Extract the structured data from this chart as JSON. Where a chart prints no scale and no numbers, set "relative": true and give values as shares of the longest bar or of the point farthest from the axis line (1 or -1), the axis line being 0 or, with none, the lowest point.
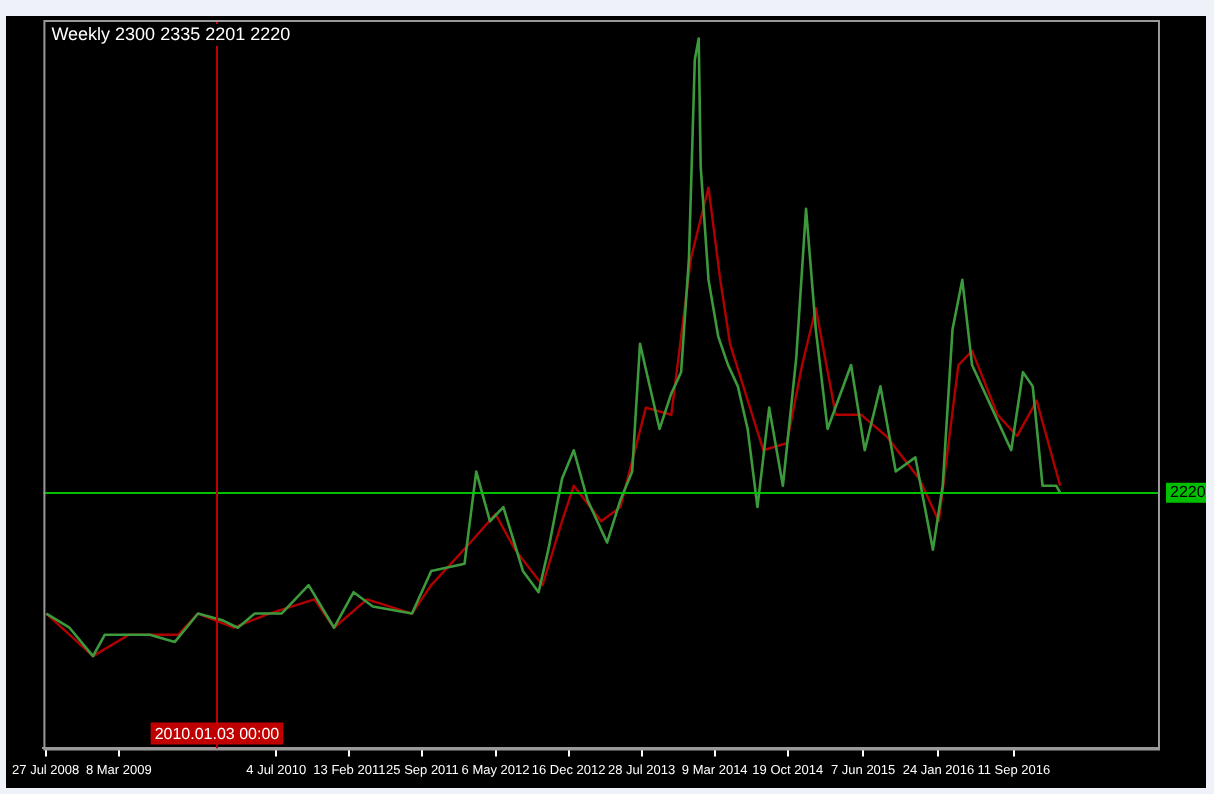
{
  "chart_data": {
    "type": "line",
    "title": "Weekly 2300 2335 2201 2220",
    "relative": true,
    "grid": false,
    "legend": false,
    "xlim": [
      "2008-07-20",
      "2017-11-27"
    ],
    "xticks": [
      {
        "value": "2008-07-27",
        "label": "27 Jul 2008"
      },
      {
        "value": "2009-03-08",
        "label": "8 Mar 2009"
      },
      {
        "value": "2010-07-04",
        "label": "4 Jul 2010"
      },
      {
        "value": "2011-02-13",
        "label": "13 Feb 2011"
      },
      {
        "value": "2011-09-25",
        "label": "25 Sep 2011"
      },
      {
        "value": "2012-05-06",
        "label": "6 May 2012"
      },
      {
        "value": "2012-12-16",
        "label": "16 Dec 2012"
      },
      {
        "value": "2013-07-28",
        "label": "28 Jul 2013"
      },
      {
        "value": "2014-03-09",
        "label": "9 Mar 2014"
      },
      {
        "value": "2014-10-19",
        "label": "19 Oct 2014"
      },
      {
        "value": "2015-06-07",
        "label": "7 Jun 2015"
      },
      {
        "value": "2016-01-24",
        "label": "24 Jan 2016"
      },
      {
        "value": "2016-09-11",
        "label": "11 Sep 2016"
      }
    ],
    "annotations": [
      "2220"
    ],
    "ref_lines": [
      {
        "axis": "y",
        "value": 0.36,
        "color": "#00c000"
      },
      {
        "axis": "x",
        "value": "2010-01-03",
        "label": "2010.01.03 00:00",
        "color": "#c00000"
      }
    ],
    "series": [
      {
        "color": "#3c9a3c",
        "x": [
          "2008-07-29",
          "2008-10-08",
          "2008-12-19",
          "2009-01-24",
          "2009-04-27",
          "2009-06-11",
          "2009-08-27",
          "2009-11-06",
          "2010-01-22",
          "2010-03-08",
          "2010-04-29",
          "2010-07-20",
          "2010-10-11",
          "2010-12-28",
          "2011-02-26",
          "2011-04-26",
          "2011-08-24",
          "2011-10-22",
          "2012-02-01",
          "2012-03-08",
          "2012-04-19",
          "2012-05-30",
          "2012-07-29",
          "2012-09-15",
          "2012-10-15",
          "2012-11-26",
          "2013-01-01",
          "2013-02-12",
          "2013-04-13",
          "2013-05-24",
          "2013-06-29",
          "2013-07-23",
          "2013-09-21",
          "2013-10-27",
          "2013-11-26",
          "2013-12-20",
          "2014-01-07",
          "2014-01-19",
          "2014-01-25",
          "2014-02-18",
          "2014-03-20",
          "2014-04-19",
          "2014-05-19",
          "2014-06-18",
          "2014-07-18",
          "2014-08-23",
          "2014-10-04",
          "2014-11-14",
          "2014-12-14",
          "2015-01-13",
          "2015-02-18",
          "2015-05-01",
          "2015-06-12",
          "2015-07-30",
          "2015-09-15",
          "2015-11-14",
          "2016-01-07",
          "2016-02-06",
          "2016-03-07",
          "2016-04-06",
          "2016-05-06",
          "2016-07-05",
          "2016-09-03",
          "2016-10-09",
          "2016-11-08",
          "2016-12-08",
          "2017-01-19",
          "2017-01-31"
        ],
        "values": [
          0.19,
          0.17,
          0.13,
          0.16,
          0.16,
          0.16,
          0.15,
          0.19,
          0.18,
          0.17,
          0.19,
          0.19,
          0.23,
          0.17,
          0.22,
          0.2,
          0.19,
          0.25,
          0.26,
          0.39,
          0.32,
          0.34,
          0.25,
          0.22,
          0.28,
          0.38,
          0.42,
          0.35,
          0.29,
          0.35,
          0.39,
          0.57,
          0.45,
          0.5,
          0.53,
          0.69,
          0.97,
          1.0,
          0.82,
          0.66,
          0.58,
          0.54,
          0.51,
          0.45,
          0.34,
          0.48,
          0.37,
          0.55,
          0.76,
          0.59,
          0.45,
          0.54,
          0.42,
          0.51,
          0.39,
          0.41,
          0.28,
          0.37,
          0.59,
          0.66,
          0.54,
          0.48,
          0.42,
          0.53,
          0.51,
          0.37,
          0.37,
          0.36
        ]
      },
      {
        "color": "#b00000",
        "x": [
          "2008-07-29",
          "2008-12-19",
          "2009-04-08",
          "2009-09-06",
          "2009-11-06",
          "2010-02-24",
          "2010-06-12",
          "2010-10-29",
          "2010-12-28",
          "2011-04-08",
          "2011-08-24",
          "2011-10-22",
          "2012-02-19",
          "2012-05-06",
          "2012-07-05",
          "2012-09-27",
          "2012-11-26",
          "2013-01-01",
          "2013-03-26",
          "2013-05-24",
          "2013-08-10",
          "2013-10-27",
          "2013-12-26",
          "2014-02-18",
          "2014-03-26",
          "2014-04-25",
          "2014-08-05",
          "2014-10-16",
          "2014-12-02",
          "2015-01-13",
          "2015-03-15",
          "2015-06-01",
          "2015-08-17",
          "2015-11-26",
          "2016-01-25",
          "2016-03-25",
          "2016-05-06",
          "2016-07-23",
          "2016-09-21",
          "2016-11-20",
          "2017-01-31"
        ],
        "values": [
          0.19,
          0.13,
          0.16,
          0.16,
          0.19,
          0.17,
          0.19,
          0.21,
          0.17,
          0.21,
          0.19,
          0.23,
          0.29,
          0.33,
          0.28,
          0.23,
          0.32,
          0.37,
          0.32,
          0.34,
          0.48,
          0.47,
          0.69,
          0.79,
          0.66,
          0.57,
          0.42,
          0.43,
          0.54,
          0.62,
          0.47,
          0.47,
          0.44,
          0.38,
          0.32,
          0.54,
          0.56,
          0.47,
          0.44,
          0.49,
          0.37
        ]
      }
    ]
  }
}
